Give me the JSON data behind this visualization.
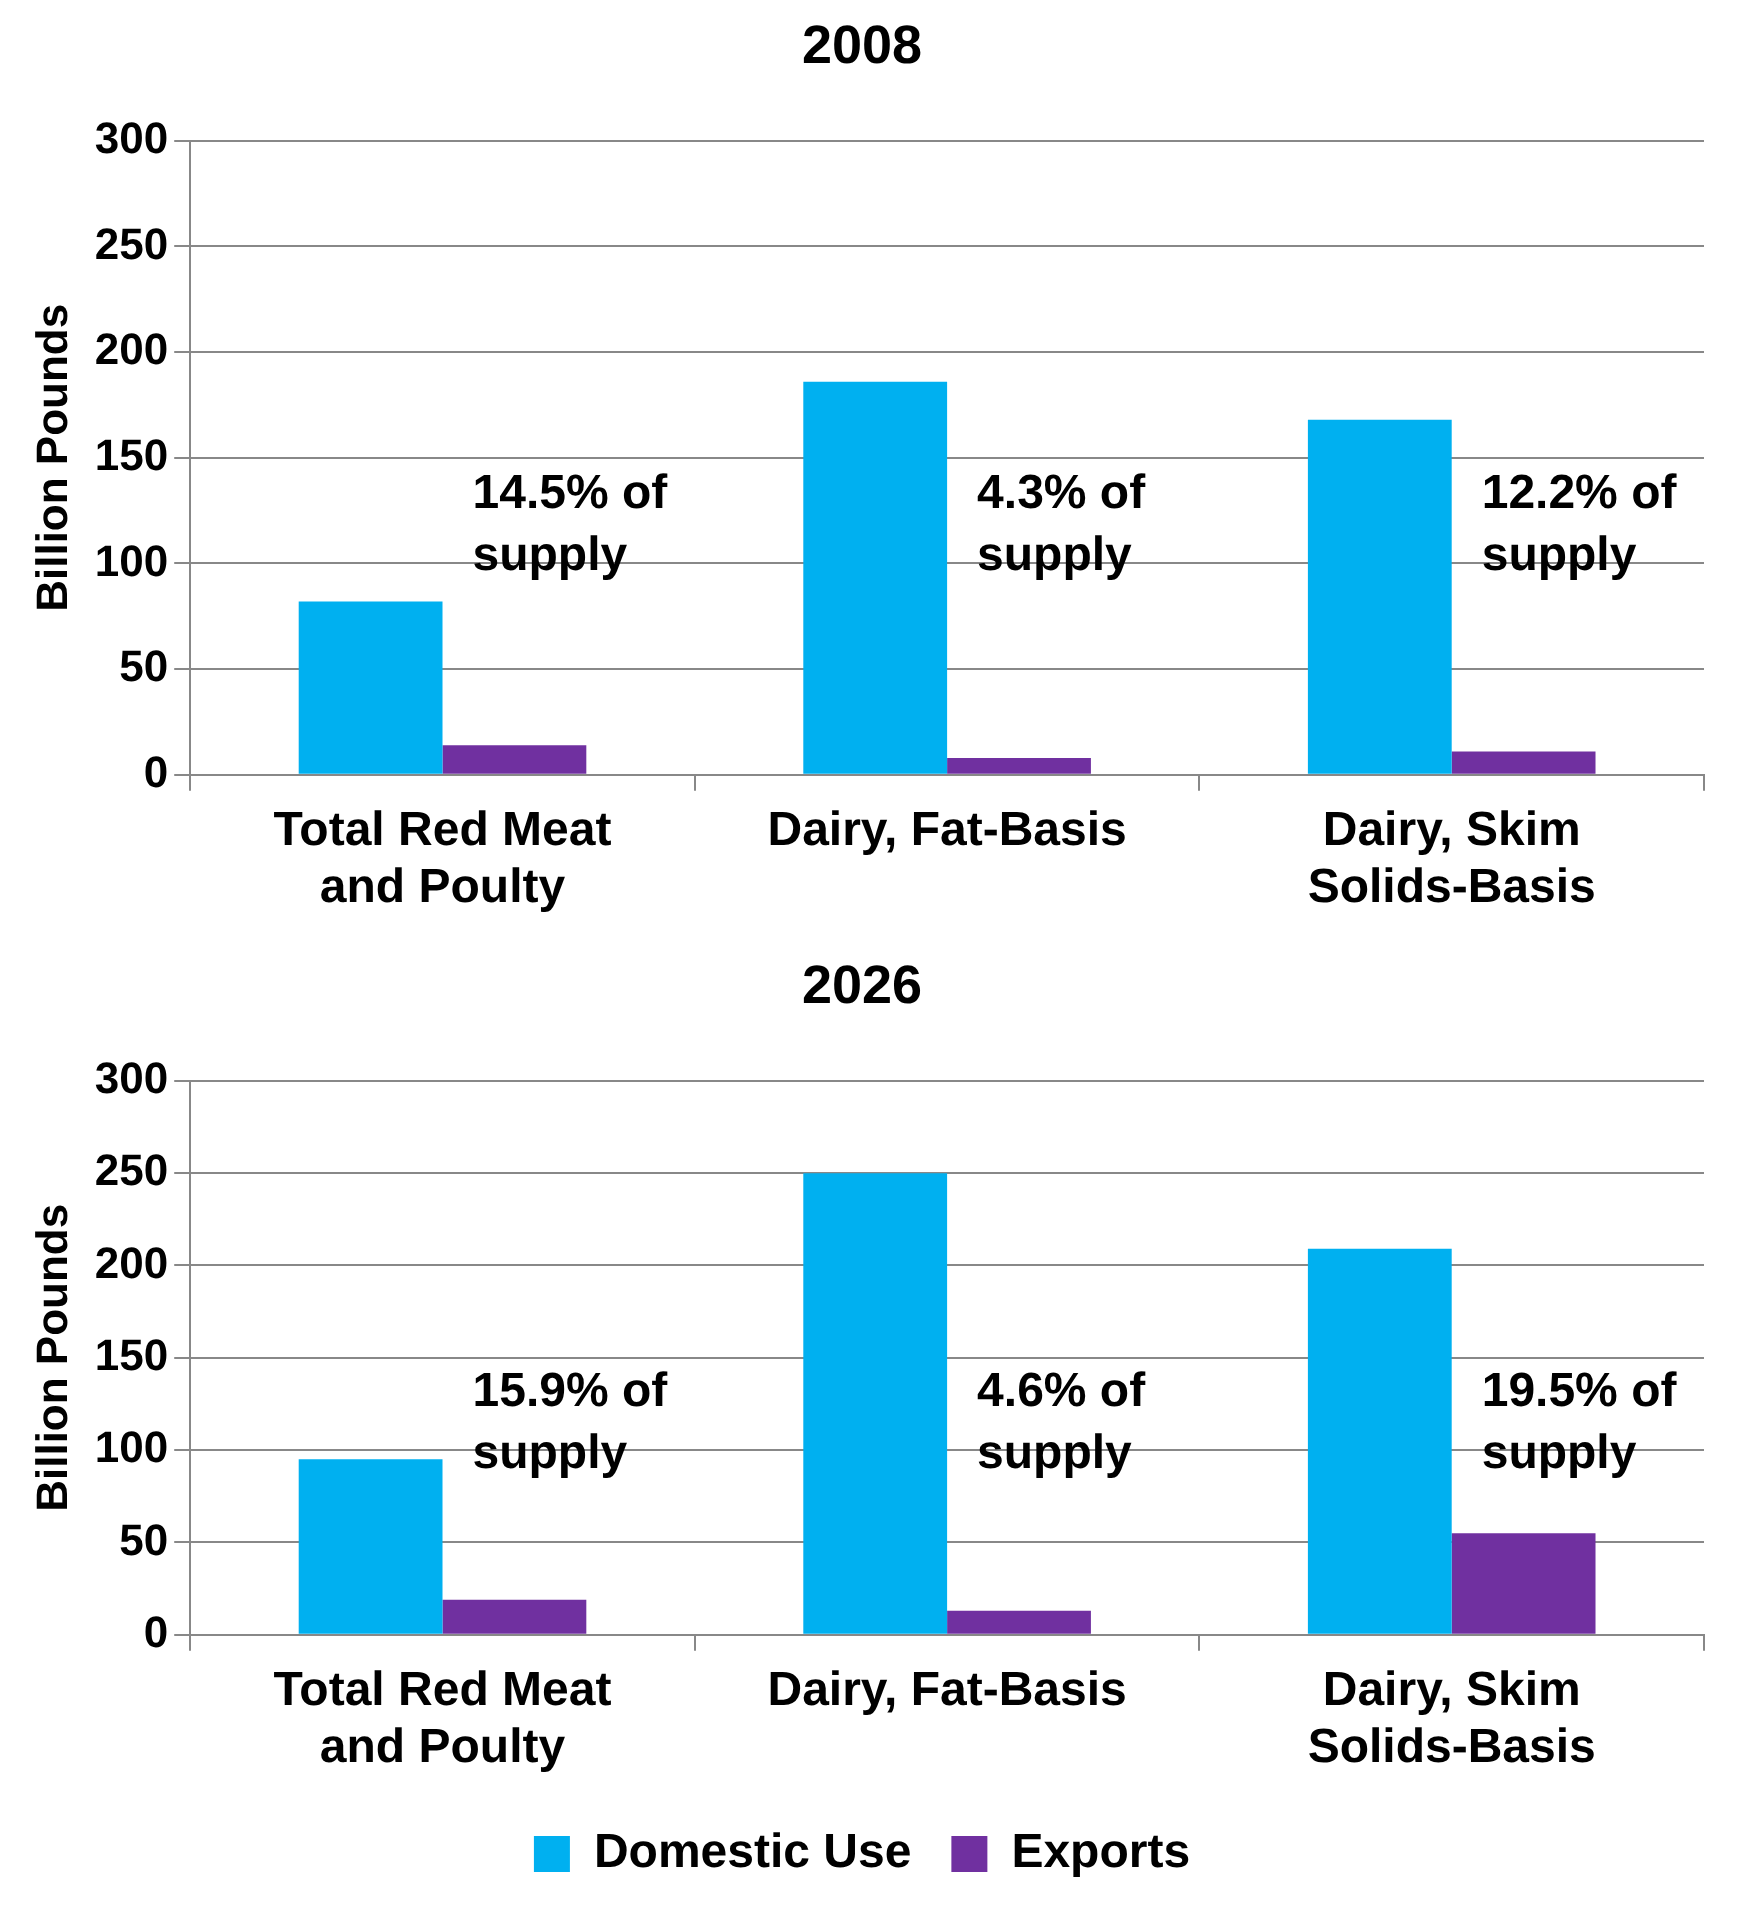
{
  "chart_data": [
    {
      "type": "bar",
      "title": "2008",
      "ylabel": "Billion Pounds",
      "categories": [
        "Total Red Meat and Poulty",
        "Dairy, Fat-Basis",
        "Dairy, Skim Solids-Basis"
      ],
      "series": [
        {
          "color": "#00b0f0",
          "values": [
            82,
            186,
            168
          ]
        },
        {
          "color": "#7030a0",
          "values": [
            14,
            8,
            11
          ]
        }
      ],
      "ylim": [
        0,
        300
      ],
      "yticks": [
        0,
        50,
        100,
        150,
        200,
        250,
        300
      ],
      "grid": "y",
      "legend": false,
      "annotations": [
        "14.5% of\nsupply",
        "4.3% of\nsupply",
        "12.2% of\nsupply"
      ]
    },
    {
      "type": "bar",
      "title": "2026",
      "ylabel": "Billion Pounds",
      "categories": [
        "Total Red Meat and Poulty",
        "Dairy, Fat-Basis",
        "Dairy, Skim Solids-Basis"
      ],
      "series": [
        {
          "name": "Domestic Use",
          "color": "#00b0f0",
          "values": [
            95,
            250,
            209
          ]
        },
        {
          "name": "Exports",
          "color": "#7030a0",
          "values": [
            19,
            13,
            55
          ]
        }
      ],
      "ylim": [
        0,
        300
      ],
      "yticks": [
        0,
        50,
        100,
        150,
        200,
        250,
        300
      ],
      "grid": "y",
      "legend": "bottom",
      "annotations": [
        "15.9% of\nsupply",
        "4.6% of\nsupply",
        "19.5% of\nsupply"
      ]
    }
  ]
}
